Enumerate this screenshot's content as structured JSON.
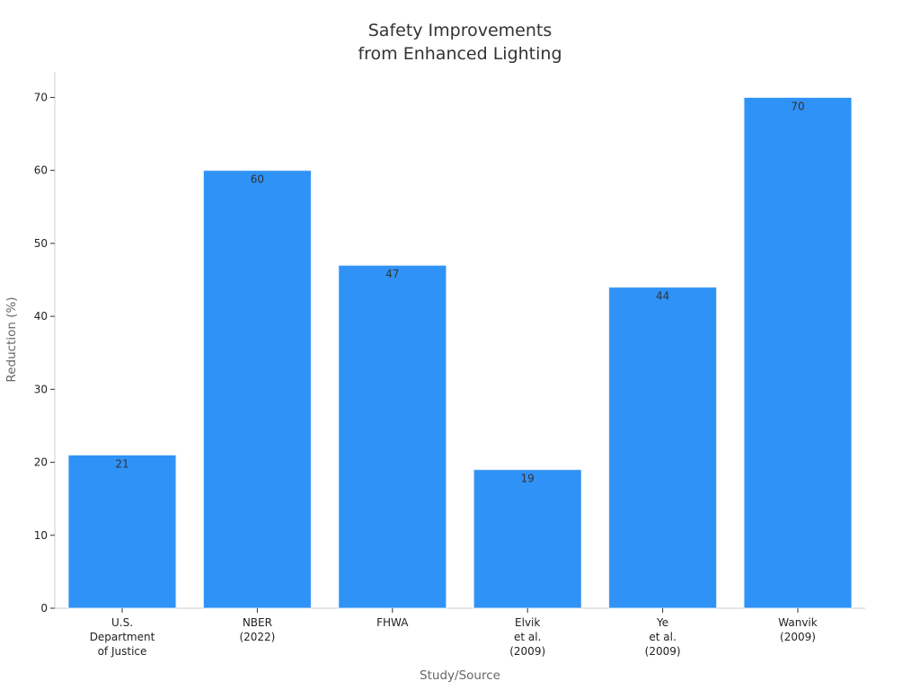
{
  "chart_data": {
    "type": "bar",
    "title_lines": [
      "Safety Improvements",
      "from Enhanced Lighting"
    ],
    "xlabel": "Study/Source",
    "ylabel": "Reduction (%)",
    "categories": [
      [
        "U.S.",
        "Department",
        "of Justice"
      ],
      [
        "NBER",
        "(2022)"
      ],
      [
        "FHWA"
      ],
      [
        "Elvik",
        "et al.",
        "(2009)"
      ],
      [
        "Ye",
        "et al.",
        "(2009)"
      ],
      [
        "Wanvik",
        "(2009)"
      ]
    ],
    "values": [
      21,
      60,
      47,
      19,
      44,
      70
    ],
    "ylim": [
      0,
      73.5
    ],
    "yticks": [
      0,
      10,
      20,
      30,
      40,
      50,
      60,
      70
    ],
    "grid": false,
    "legend": "none",
    "colors": {
      "bar": "#2f92f7",
      "bar_edge": "#e6f0fb",
      "axis": "#cccccc",
      "text": "#333333"
    }
  }
}
